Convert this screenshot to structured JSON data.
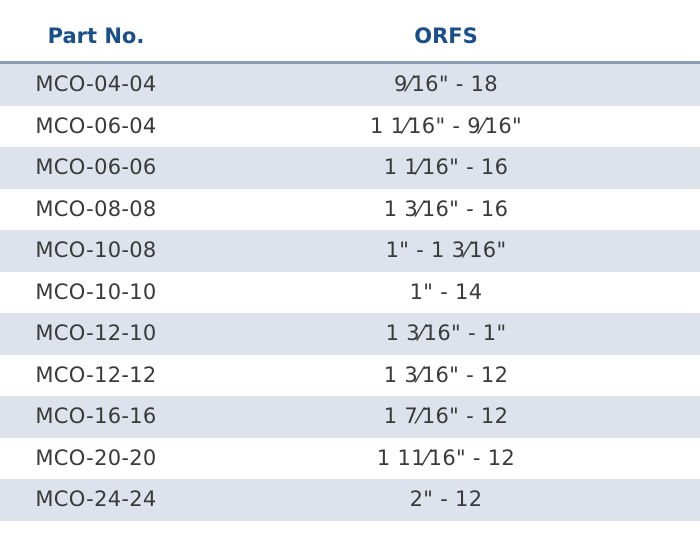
{
  "table": {
    "headers": [
      "Part No.",
      "ORFS"
    ],
    "rows": [
      {
        "part_no": "MCO-04-04",
        "orfs": "9⁄16\" - 18"
      },
      {
        "part_no": "MCO-06-04",
        "orfs": "1 1⁄16\" - 9⁄16\""
      },
      {
        "part_no": "MCO-06-06",
        "orfs": "1 1⁄16\" - 16"
      },
      {
        "part_no": "MCO-08-08",
        "orfs": "1 3⁄16\" - 16"
      },
      {
        "part_no": "MCO-10-08",
        "orfs": "1\" - 1 3⁄16\""
      },
      {
        "part_no": "MCO-10-10",
        "orfs": "1\" - 14"
      },
      {
        "part_no": "MCO-12-10",
        "orfs": "1 3⁄16\" - 1\""
      },
      {
        "part_no": "MCO-12-12",
        "orfs": "1 3⁄16\" - 12"
      },
      {
        "part_no": "MCO-16-16",
        "orfs": "1 7⁄16\" - 12"
      },
      {
        "part_no": "MCO-20-20",
        "orfs": "1 11⁄16\" - 12"
      },
      {
        "part_no": "MCO-24-24",
        "orfs": "2\" - 12"
      }
    ]
  },
  "colors": {
    "header_text": "#1b4f8a",
    "shaded_row": "#dde2ec",
    "header_rule": "#8e9bb5",
    "body_text": "#3a3a3a"
  }
}
